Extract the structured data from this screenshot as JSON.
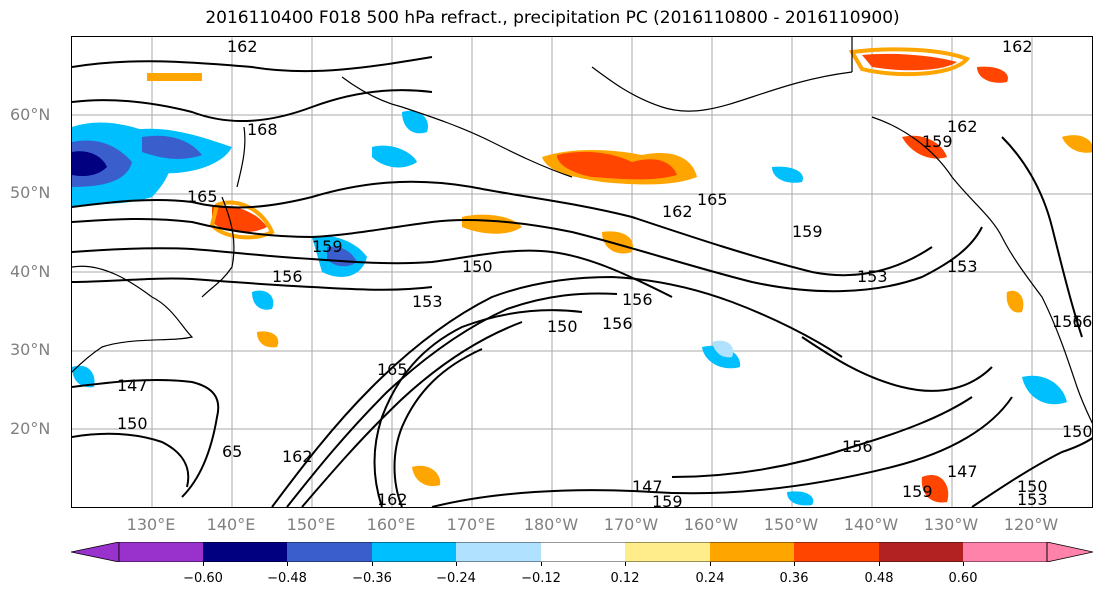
{
  "title": "2016110400 F018 500 hPa refract., precipitation PC (2016110800 - 2016110900)",
  "map": {
    "region": "North Pacific",
    "lon_range": [
      120,
      245
    ],
    "lat_range": [
      10,
      70
    ],
    "lat_labels": [
      "60°N",
      "50°N",
      "40°N",
      "30°N",
      "20°N"
    ],
    "lon_labels": [
      "130°E",
      "140°E",
      "150°E",
      "160°E",
      "170°E",
      "180°W",
      "170°W",
      "160°W",
      "150°W",
      "140°W",
      "130°W",
      "120°W"
    ],
    "contour_labels": [
      "162",
      "168",
      "165",
      "159",
      "156",
      "150",
      "153",
      "147",
      "165",
      "162",
      "165",
      "159",
      "156",
      "153",
      "150",
      "147",
      "159",
      "162",
      "156",
      "156",
      "150",
      "65",
      "162",
      "159",
      "153",
      "147",
      "150",
      "153",
      "159",
      "162",
      "156",
      "150",
      "162",
      "165"
    ]
  },
  "colorbar": {
    "ticks": [
      "−0.60",
      "−0.48",
      "−0.36",
      "−0.24",
      "−0.12",
      "0.12",
      "0.24",
      "0.36",
      "0.48",
      "0.60"
    ],
    "colors": [
      "#9932CC",
      "#000080",
      "#3A5FCD",
      "#00BFFF",
      "#B0E2FF",
      "#FFFFFF",
      "#FFEC8B",
      "#FFA500",
      "#FF4500",
      "#B22222",
      "#FF82AB"
    ]
  }
}
